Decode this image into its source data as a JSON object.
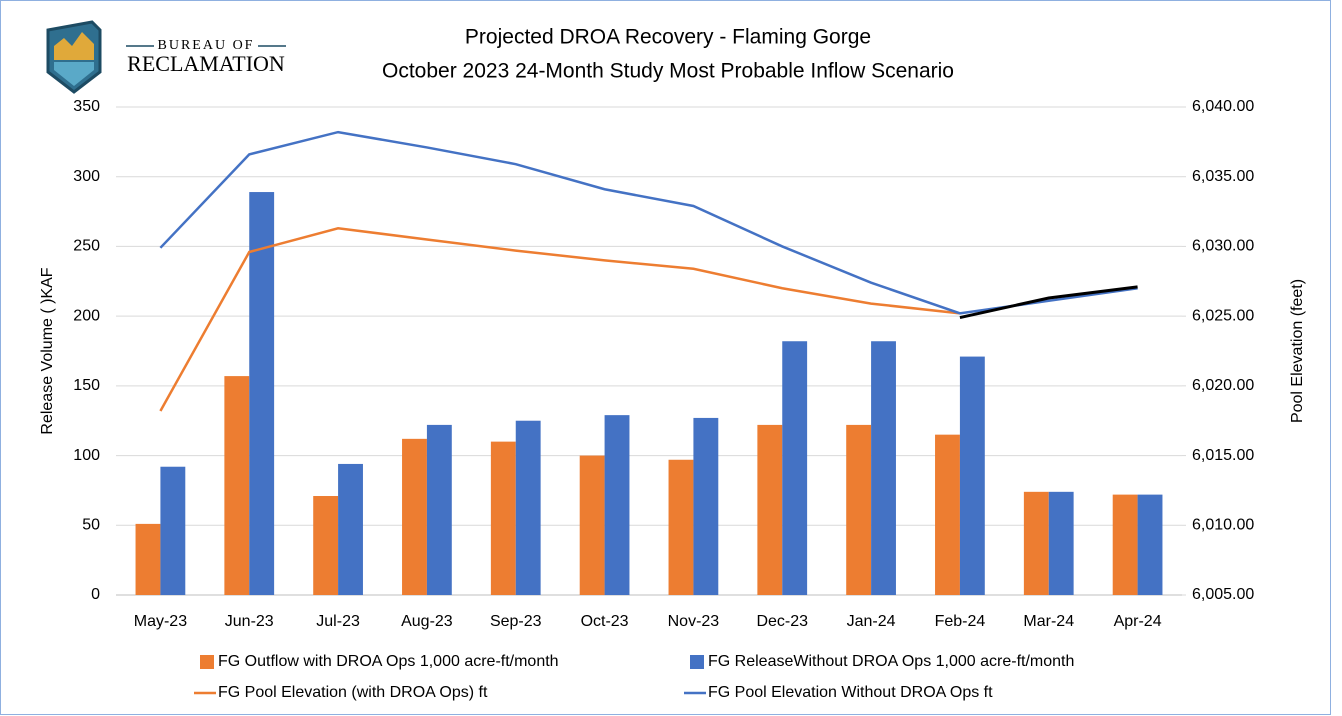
{
  "logo": {
    "line1": "BUREAU OF",
    "line2": "RECLAMATION"
  },
  "chart_data": {
    "type": "bar",
    "title": "Projected DROA Recovery - Flaming Gorge",
    "subtitle": "October 2023 24-Month Study Most Probable Inflow Scenario",
    "y_label": "Release Volume ( )KAF",
    "y2_label": "Pool Elevation (feet)",
    "categories": [
      "May-23",
      "Jun-23",
      "Jul-23",
      "Aug-23",
      "Sep-23",
      "Oct-23",
      "Nov-23",
      "Dec-23",
      "Jan-24",
      "Feb-24",
      "Mar-24",
      "Apr-24"
    ],
    "ylim": [
      0,
      350
    ],
    "yticks": [
      0,
      50,
      100,
      150,
      200,
      250,
      300,
      350
    ],
    "y2lim": [
      6005,
      6040
    ],
    "y2ticks": [
      {
        "value": 6005,
        "label": "6,005.00"
      },
      {
        "value": 6010,
        "label": "6,010.00"
      },
      {
        "value": 6015,
        "label": "6,015.00"
      },
      {
        "value": 6020,
        "label": "6,020.00"
      },
      {
        "value": 6025,
        "label": "6,025.00"
      },
      {
        "value": 6030,
        "label": "6,030.00"
      },
      {
        "value": 6035,
        "label": "6,035.00"
      },
      {
        "value": 6040,
        "label": "6,040.00"
      }
    ],
    "grid": true,
    "legend": "bottom",
    "series": [
      {
        "name": "FG Outflow with DROA Ops 1,000 acre-ft/month",
        "type": "bar",
        "color": "#ed7d31",
        "values": [
          51,
          157,
          71,
          112,
          110,
          100,
          97,
          122,
          122,
          115,
          74,
          72
        ]
      },
      {
        "name": "FG ReleaseWithout DROA Ops 1,000 acre-ft/month",
        "type": "bar",
        "color": "#4472c4",
        "values": [
          92,
          289,
          94,
          122,
          125,
          129,
          127,
          182,
          182,
          171,
          74,
          72
        ]
      },
      {
        "name": "FG Pool Elevation (with DROA Ops) ft",
        "type": "line",
        "axis": "y2",
        "color": "#ed7d31",
        "values": [
          6018.2,
          6029.6,
          6031.3,
          6030.5,
          6029.7,
          6029.0,
          6028.4,
          6027.0,
          6025.9,
          6025.2,
          null,
          null
        ]
      },
      {
        "name": "FG Pool Elevation Without DROA Ops ft",
        "type": "line",
        "axis": "y2",
        "color": "#4472c4",
        "values": [
          6029.9,
          6036.6,
          6038.2,
          6037.1,
          6035.9,
          6034.1,
          6032.9,
          6030.0,
          6027.4,
          6025.2,
          6026.1,
          6027.0
        ]
      },
      {
        "type": "line",
        "axis": "y2",
        "color": "#000000",
        "values": [
          null,
          null,
          null,
          null,
          null,
          null,
          null,
          null,
          null,
          6024.9,
          6026.3,
          6027.1
        ]
      }
    ]
  }
}
